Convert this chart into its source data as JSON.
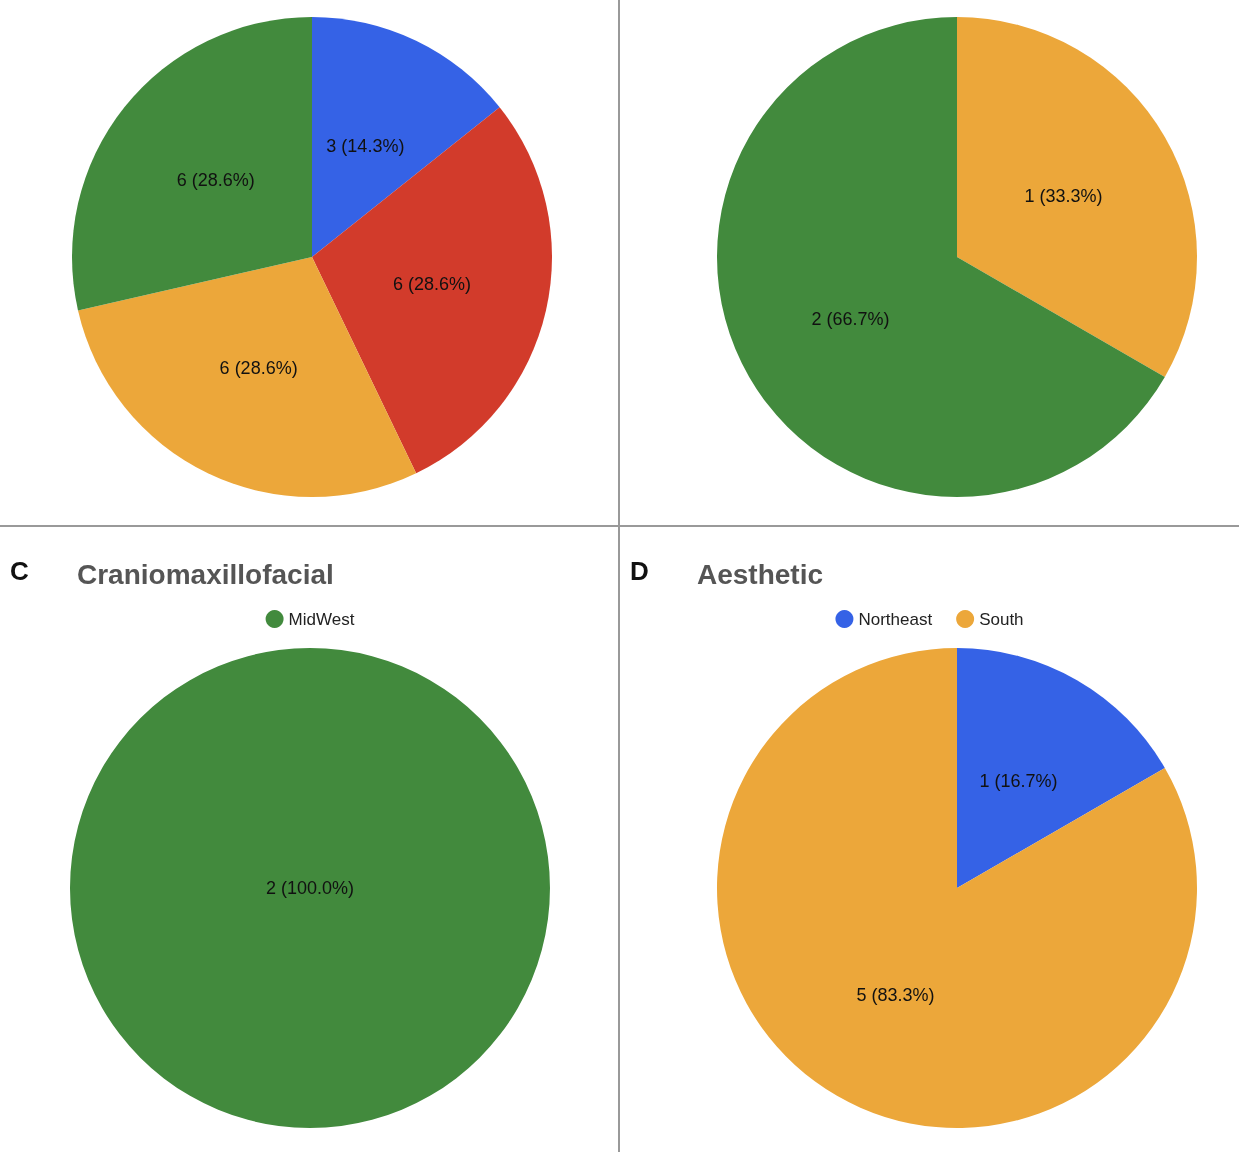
{
  "chart_data": [
    {
      "type": "pie",
      "categories": [
        null,
        null,
        null,
        null
      ],
      "values": [
        3,
        6,
        6,
        6
      ],
      "colors": [
        "#3562e6",
        "#d23b2b",
        "#eca73a",
        "#428a3d"
      ],
      "value_labels": [
        "3 (14.3%)",
        "6 (28.6%)",
        "6 (28.6%)",
        "6 (28.6%)"
      ]
    },
    {
      "type": "pie",
      "categories": [
        null,
        null
      ],
      "values": [
        1,
        2
      ],
      "colors": [
        "#eca73a",
        "#428a3d"
      ],
      "value_labels": [
        "1 (33.3%)",
        "2 (66.7%)"
      ]
    },
    {
      "type": "pie",
      "title": "Craniomaxillofacial",
      "annotations": [
        "C"
      ],
      "categories": [
        "MidWest"
      ],
      "values": [
        2
      ],
      "colors": [
        "#428a3d"
      ],
      "value_labels": [
        "2 (100.0%)"
      ],
      "legend": "top"
    },
    {
      "type": "pie",
      "title": "Aesthetic",
      "annotations": [
        "D"
      ],
      "categories": [
        "Northeast",
        "South"
      ],
      "values": [
        1,
        5
      ],
      "colors": [
        "#3562e6",
        "#eca73a"
      ],
      "value_labels": [
        "1 (16.7%)",
        "5 (83.3%)"
      ],
      "legend": "top"
    }
  ]
}
